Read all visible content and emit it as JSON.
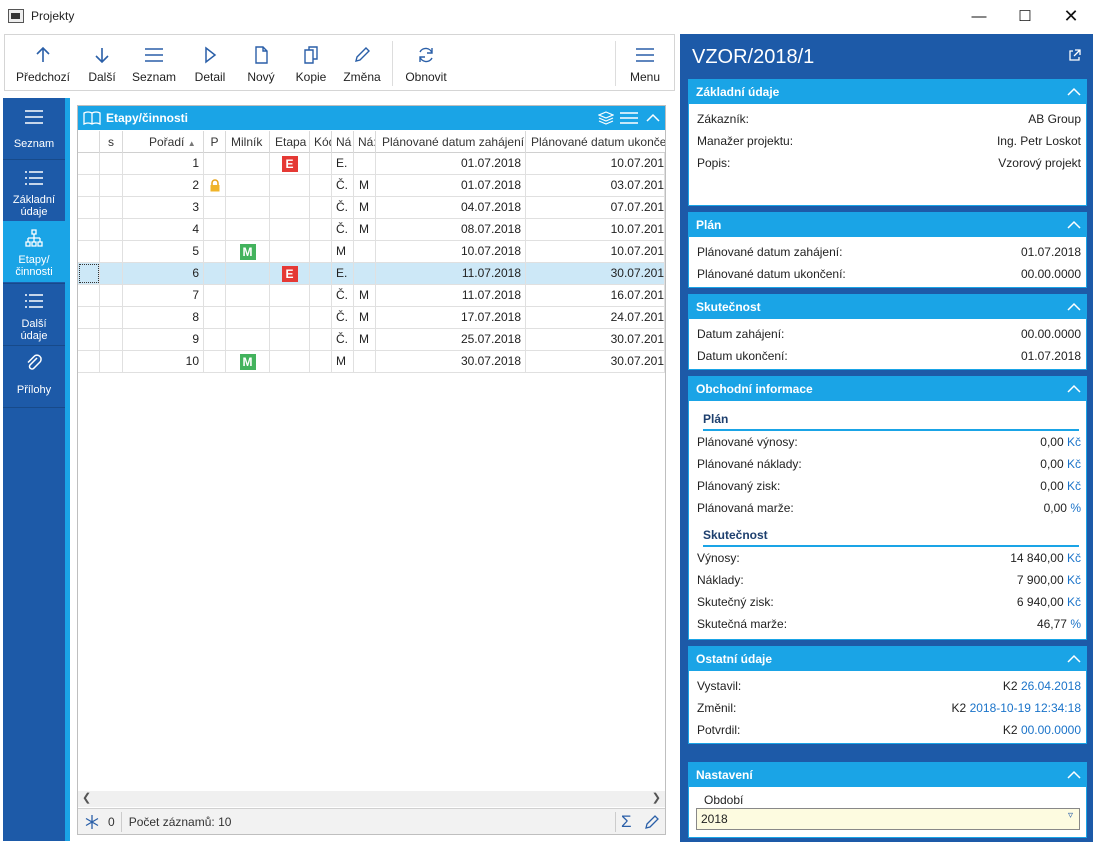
{
  "window": {
    "title": "Projekty"
  },
  "toolbar": {
    "items": [
      "Předchozí",
      "Další",
      "Seznam",
      "Detail",
      "Nový",
      "Kopie",
      "Změna",
      "Obnovit"
    ],
    "menu": "Menu"
  },
  "nav": {
    "items": [
      "Seznam",
      "Základní údaje",
      "Etapy/ činnosti",
      "Další údaje",
      "Přílohy"
    ]
  },
  "grid": {
    "title": "Etapy/činnosti",
    "columns": [
      "s",
      "Pořadí",
      "P",
      "Milník",
      "Etapa",
      "Kód",
      "Ná",
      "Ná:",
      "Plánované datum zahájení",
      "Plánované datum ukonče"
    ],
    "rows": [
      {
        "order": "1",
        "lock": false,
        "milnik": "",
        "etapa": "E",
        "na1": "E.",
        "na2": "",
        "start": "01.07.2018",
        "end": "10.07.201"
      },
      {
        "order": "2",
        "lock": true,
        "milnik": "",
        "etapa": "",
        "na1": "Č.",
        "na2": "M",
        "start": "01.07.2018",
        "end": "03.07.201"
      },
      {
        "order": "3",
        "lock": false,
        "milnik": "",
        "etapa": "",
        "na1": "Č.",
        "na2": "M",
        "start": "04.07.2018",
        "end": "07.07.201"
      },
      {
        "order": "4",
        "lock": false,
        "milnik": "",
        "etapa": "",
        "na1": "Č.",
        "na2": "M",
        "start": "08.07.2018",
        "end": "10.07.201"
      },
      {
        "order": "5",
        "lock": false,
        "milnik": "M",
        "etapa": "",
        "na1": "M",
        "na2": "",
        "start": "10.07.2018",
        "end": "10.07.201"
      },
      {
        "order": "6",
        "lock": false,
        "milnik": "",
        "etapa": "E",
        "na1": "E.",
        "na2": "",
        "start": "11.07.2018",
        "end": "30.07.201"
      },
      {
        "order": "7",
        "lock": false,
        "milnik": "",
        "etapa": "",
        "na1": "Č.",
        "na2": "M",
        "start": "11.07.2018",
        "end": "16.07.201"
      },
      {
        "order": "8",
        "lock": false,
        "milnik": "",
        "etapa": "",
        "na1": "Č.",
        "na2": "M",
        "start": "17.07.2018",
        "end": "24.07.201"
      },
      {
        "order": "9",
        "lock": false,
        "milnik": "",
        "etapa": "",
        "na1": "Č.",
        "na2": "M",
        "start": "25.07.2018",
        "end": "30.07.201"
      },
      {
        "order": "10",
        "lock": false,
        "milnik": "M",
        "etapa": "",
        "na1": "M",
        "na2": "",
        "start": "30.07.2018",
        "end": "30.07.201"
      }
    ],
    "selected_row": 6,
    "status": {
      "filter_count": "0",
      "record_count": "Počet záznamů: 10"
    }
  },
  "detail": {
    "title": "VZOR/2018/1",
    "zakladni": {
      "head": "Základní údaje",
      "rows": [
        [
          "Zákazník:",
          "AB Group"
        ],
        [
          "Manažer projektu:",
          "Ing. Petr Loskot"
        ],
        [
          "Popis:",
          "Vzorový projekt"
        ]
      ]
    },
    "plan": {
      "head": "Plán",
      "rows": [
        [
          "Plánované datum zahájení:",
          "01.07.2018"
        ],
        [
          "Plánované datum ukončení:",
          "00.00.0000"
        ]
      ]
    },
    "skutecnost": {
      "head": "Skutečnost",
      "rows": [
        [
          "Datum zahájení:",
          "00.00.0000"
        ],
        [
          "Datum ukončení:",
          "01.07.2018"
        ]
      ]
    },
    "obchodni": {
      "head": "Obchodní informace",
      "plan_head": "Plán",
      "plan_rows": [
        [
          "Plánované výnosy:",
          "0,00",
          "Kč"
        ],
        [
          "Plánované náklady:",
          "0,00",
          "Kč"
        ],
        [
          "Plánovaný zisk:",
          "0,00",
          "Kč"
        ],
        [
          "Plánovaná marže:",
          "0,00",
          "%"
        ]
      ],
      "skut_head": "Skutečnost",
      "skut_rows": [
        [
          "Výnosy:",
          "14 840,00",
          "Kč"
        ],
        [
          "Náklady:",
          "7 900,00",
          "Kč"
        ],
        [
          "Skutečný zisk:",
          "6 940,00",
          "Kč"
        ],
        [
          "Skutečná marže:",
          "46,77",
          "%"
        ]
      ]
    },
    "ostatni": {
      "head": "Ostatní údaje",
      "rows": [
        [
          "Vystavil:",
          "K2",
          "26.04.2018"
        ],
        [
          "Změnil:",
          "K2",
          "2018-10-19 12:34:18"
        ],
        [
          "Potvrdil:",
          "K2",
          "00.00.0000"
        ]
      ]
    },
    "nastaveni": {
      "head": "Nastavení",
      "obdobi_label": "Období",
      "obdobi_value": "2018"
    }
  },
  "colors": {
    "accent": "#1aa4e6",
    "nav": "#1d5aa8",
    "etapa": "#e53935",
    "milnik": "#43b35d",
    "link": "#1a73c9"
  }
}
